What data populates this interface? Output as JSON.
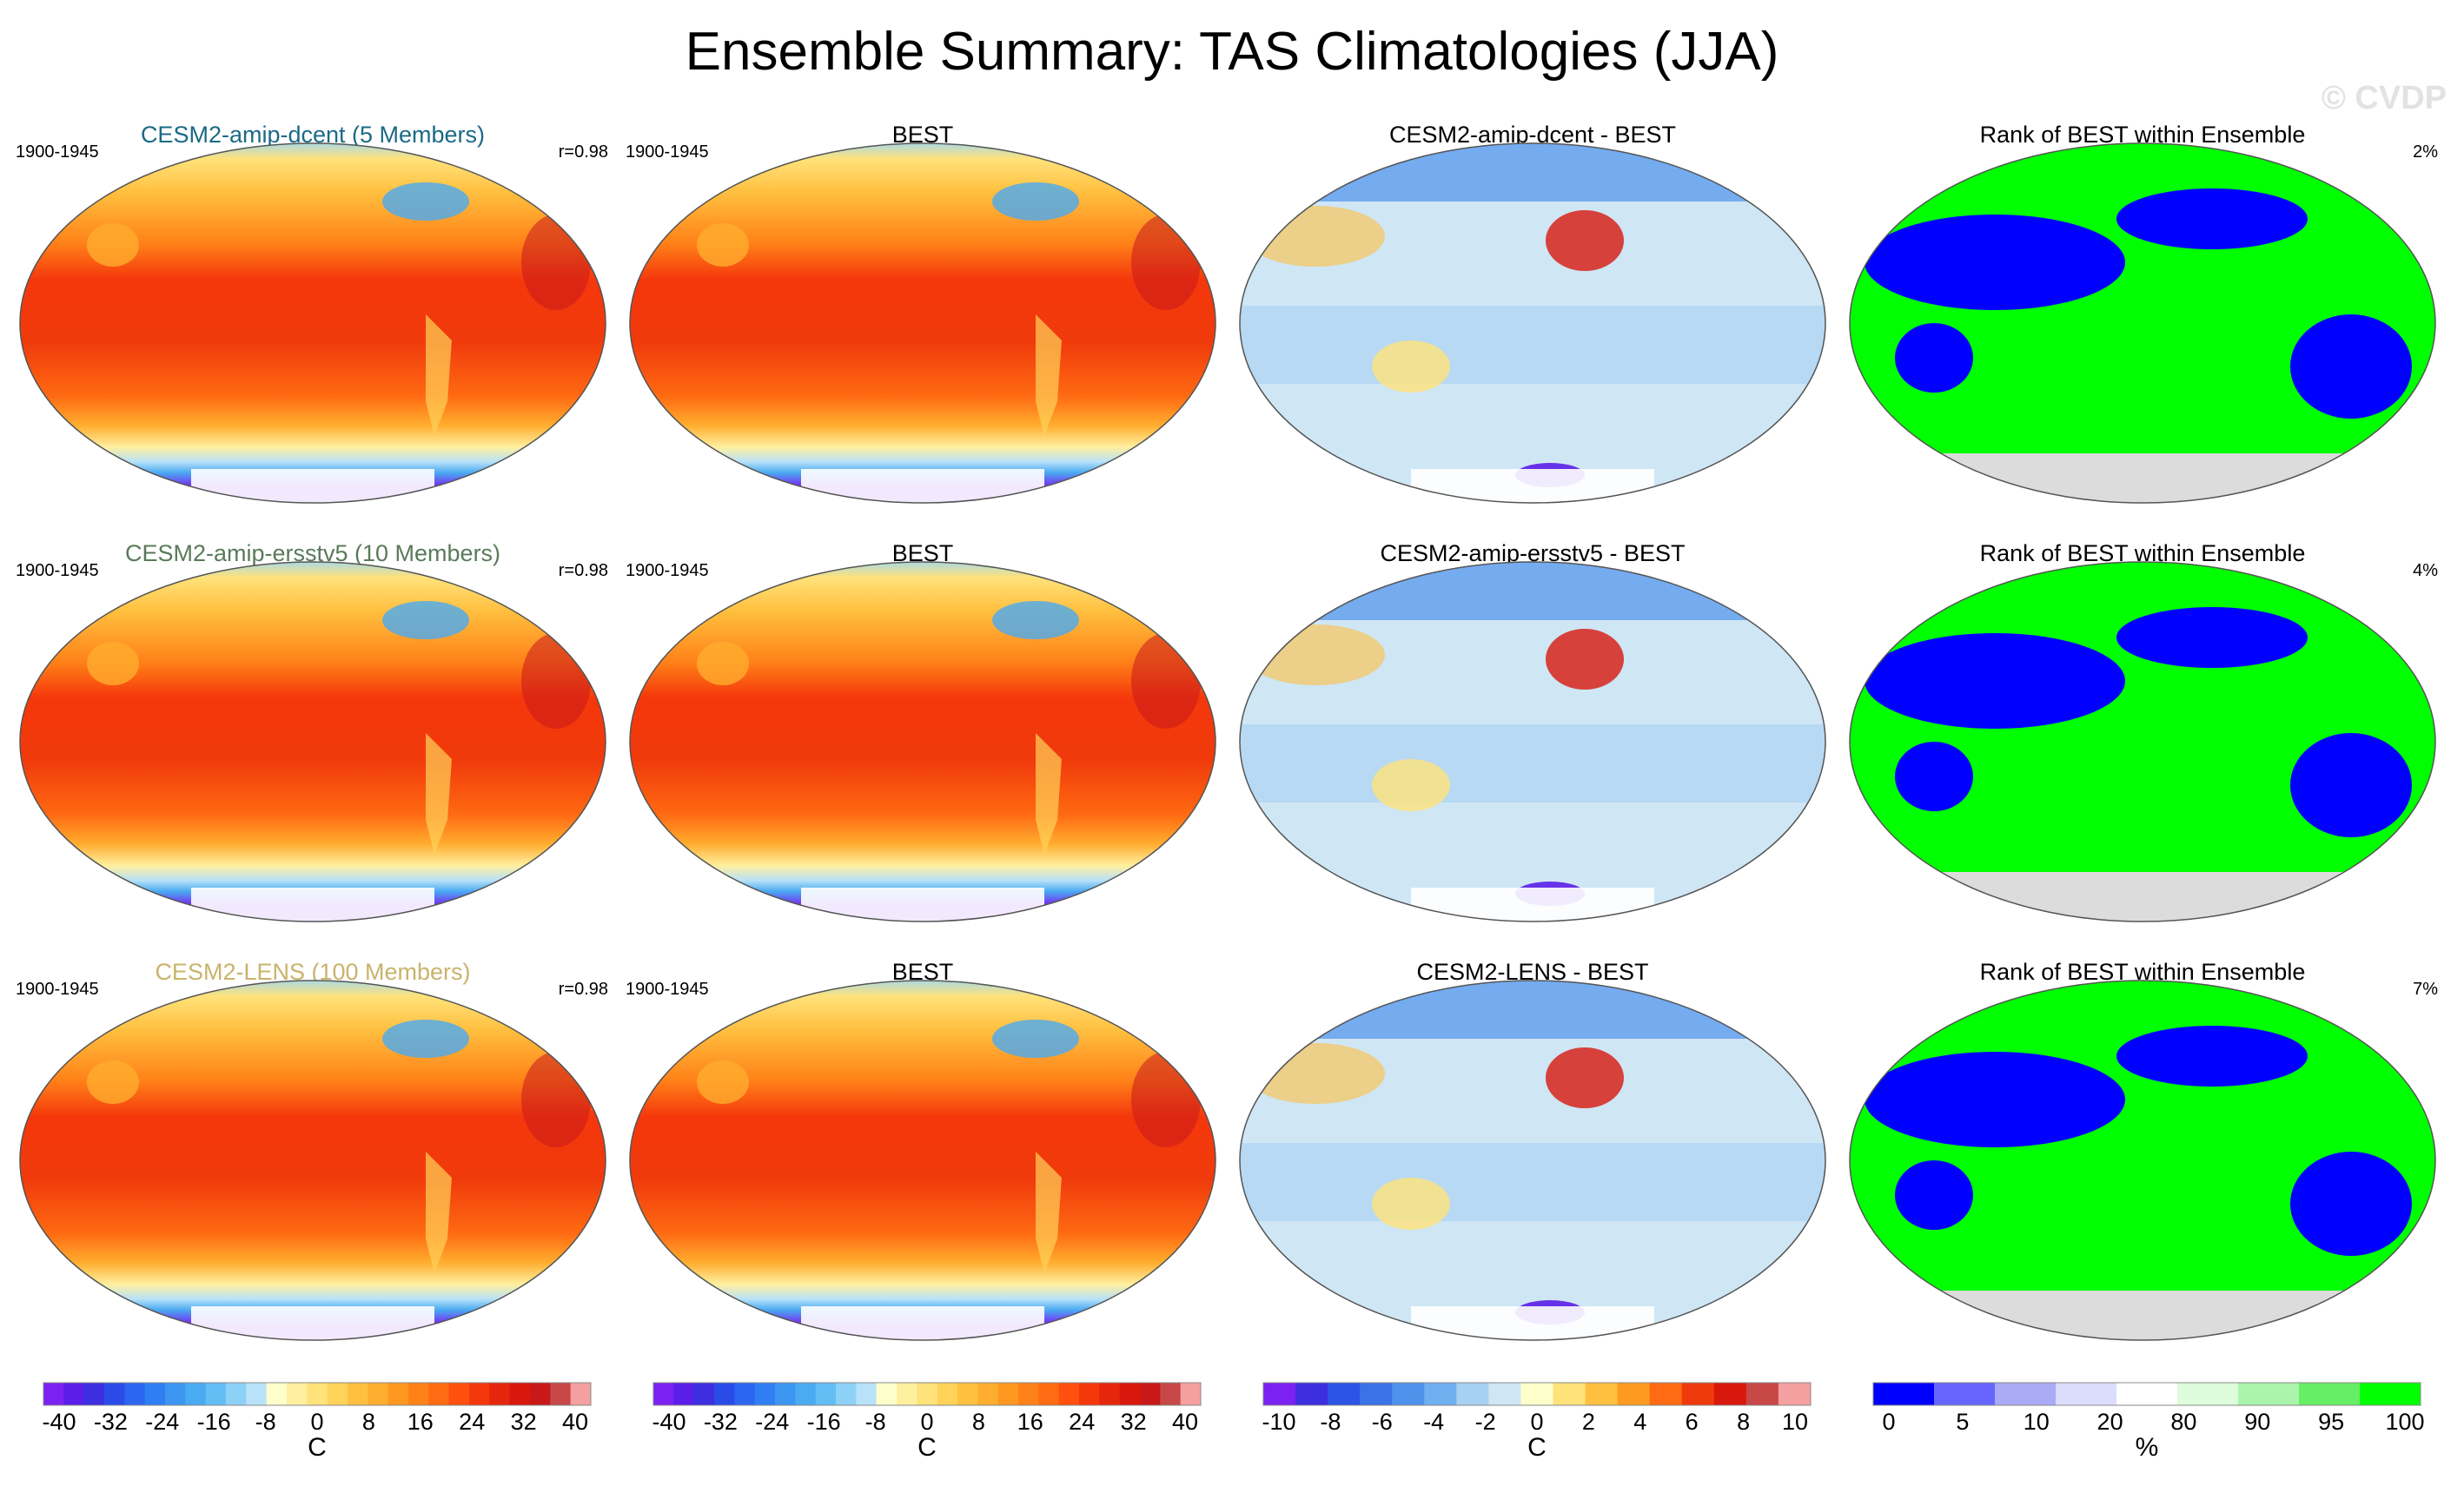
{
  "title": "Ensemble Summary: TAS Climatologies (JJA)",
  "watermark": "© CVDP",
  "rows": [
    {
      "model_title": "CESM2-amip-dcent (5 Members)",
      "model_color": "#1b6a86",
      "period": "1900-1945",
      "r_label": "r=0.98",
      "obs_title": "BEST",
      "obs_period": "1900-1945",
      "diff_title": "CESM2-amip-dcent - BEST",
      "rank_title": "Rank of BEST within Ensemble",
      "rank_pct": "2%"
    },
    {
      "model_title": "CESM2-amip-ersstv5 (10 Members)",
      "model_color": "#5a7a5a",
      "period": "1900-1945",
      "r_label": "r=0.98",
      "obs_title": "BEST",
      "obs_period": "1900-1945",
      "diff_title": "CESM2-amip-ersstv5 - BEST",
      "rank_title": "Rank of BEST within Ensemble",
      "rank_pct": "4%"
    },
    {
      "model_title": "CESM2-LENS (100 Members)",
      "model_color": "#c9b36c",
      "period": "1900-1945",
      "r_label": "r=0.98",
      "obs_title": "BEST",
      "obs_period": "1900-1945",
      "diff_title": "CESM2-LENS - BEST",
      "rank_title": "Rank of BEST within Ensemble",
      "rank_pct": "7%"
    }
  ],
  "colorbars": {
    "climatology": {
      "unit": "C",
      "tick_labels": [
        "-40",
        "-32",
        "-24",
        "-16",
        "-8",
        "0",
        "8",
        "16",
        "24",
        "32",
        "40"
      ],
      "colors": [
        "#7b21f2",
        "#5a1ee8",
        "#3d2ee0",
        "#2b4be8",
        "#2c66f0",
        "#2f7ff2",
        "#3c96f2",
        "#4aaaf2",
        "#62bef5",
        "#8ed1f7",
        "#b8e2f8",
        "#ffffcc",
        "#fff0a0",
        "#ffe27a",
        "#ffd25a",
        "#ffc040",
        "#ffad2e",
        "#ff9820",
        "#ff8218",
        "#ff6a12",
        "#ff500e",
        "#f5380c",
        "#e6260c",
        "#d8180c",
        "#c81818",
        "#c84848",
        "#f5a0a0"
      ]
    },
    "difference": {
      "unit": "C",
      "tick_labels": [
        "-10",
        "-8",
        "-6",
        "-4",
        "-2",
        "0",
        "2",
        "4",
        "6",
        "8",
        "10"
      ],
      "colors": [
        "#7b21f2",
        "#3d2ee0",
        "#2c55e6",
        "#3a72e8",
        "#4f92ec",
        "#70b0f0",
        "#a7d1f2",
        "#cfe6f5",
        "#ffffcc",
        "#ffe27a",
        "#ffc040",
        "#ff9a20",
        "#ff6a12",
        "#ef3a0c",
        "#d8180c",
        "#c84848",
        "#f5a0a0"
      ]
    },
    "rank": {
      "unit": "%",
      "tick_labels": [
        "0",
        "5",
        "10",
        "20",
        "80",
        "90",
        "95",
        "100"
      ],
      "colors": [
        "#0000ff",
        "#6666ff",
        "#aaaaf5",
        "#dcdcfc",
        "#ffffff",
        "#dcfcdc",
        "#aaf5aa",
        "#66ee66",
        "#00ff00"
      ]
    }
  },
  "chart_data": [
    {
      "type": "heatmap",
      "panel": "model-climatology",
      "variable": "TAS",
      "season": "JJA",
      "units": "C",
      "range": [
        -40,
        40
      ],
      "r": 0.98
    },
    {
      "type": "heatmap",
      "panel": "observed-climatology",
      "dataset": "BEST",
      "units": "C",
      "range": [
        -40,
        40
      ]
    },
    {
      "type": "heatmap",
      "panel": "difference",
      "units": "C",
      "range": [
        -10,
        10
      ]
    },
    {
      "type": "heatmap",
      "panel": "rank",
      "units": "%",
      "range": [
        0,
        100
      ],
      "rank_percent": [
        2,
        4,
        7
      ]
    }
  ]
}
